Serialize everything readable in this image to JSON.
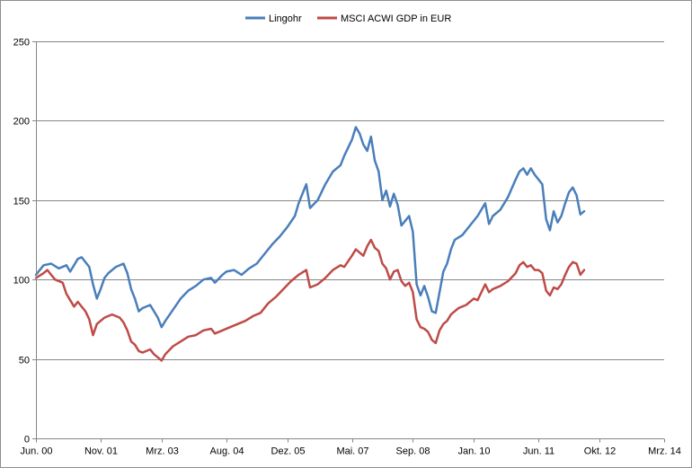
{
  "chart_data": {
    "type": "line",
    "title": "",
    "xlabel": "",
    "ylabel": "",
    "ylim": [
      0,
      250
    ],
    "yticks": [
      0,
      50,
      100,
      150,
      200,
      250
    ],
    "x_tick_labels": [
      "Jun. 00",
      "Nov. 01",
      "Mrz. 03",
      "Aug. 04",
      "Dez. 05",
      "Mai. 07",
      "Sep. 08",
      "Jan. 10",
      "Jun. 11",
      "Okt. 12",
      "Mrz. 14"
    ],
    "x_tick_dates": [
      "2000-06",
      "2001-11",
      "2003-03",
      "2004-08",
      "2005-12",
      "2007-05",
      "2008-09",
      "2010-01",
      "2011-06",
      "2012-10",
      "2014-03"
    ],
    "grid": "horizontal",
    "legend_position": "top",
    "series": [
      {
        "name": "Lingohr",
        "color": "#4a7ebb",
        "points": [
          [
            "2000-06",
            103
          ],
          [
            "2000-08",
            109
          ],
          [
            "2000-10",
            110
          ],
          [
            "2000-12",
            107
          ],
          [
            "2001-02",
            109
          ],
          [
            "2001-03",
            105
          ],
          [
            "2001-05",
            113
          ],
          [
            "2001-06",
            114
          ],
          [
            "2001-08",
            108
          ],
          [
            "2001-09",
            97
          ],
          [
            "2001-10",
            88
          ],
          [
            "2001-11",
            94
          ],
          [
            "2001-12",
            101
          ],
          [
            "2002-01",
            104
          ],
          [
            "2002-03",
            108
          ],
          [
            "2002-05",
            110
          ],
          [
            "2002-06",
            104
          ],
          [
            "2002-07",
            94
          ],
          [
            "2002-08",
            88
          ],
          [
            "2002-09",
            80
          ],
          [
            "2002-10",
            82
          ],
          [
            "2002-12",
            84
          ],
          [
            "2003-02",
            76
          ],
          [
            "2003-03",
            70
          ],
          [
            "2003-04",
            74
          ],
          [
            "2003-06",
            81
          ],
          [
            "2003-08",
            88
          ],
          [
            "2003-10",
            93
          ],
          [
            "2003-12",
            96
          ],
          [
            "2004-02",
            100
          ],
          [
            "2004-04",
            101
          ],
          [
            "2004-05",
            98
          ],
          [
            "2004-07",
            103
          ],
          [
            "2004-08",
            105
          ],
          [
            "2004-10",
            106
          ],
          [
            "2004-12",
            103
          ],
          [
            "2005-02",
            107
          ],
          [
            "2005-04",
            110
          ],
          [
            "2005-06",
            116
          ],
          [
            "2005-08",
            122
          ],
          [
            "2005-10",
            127
          ],
          [
            "2005-12",
            133
          ],
          [
            "2006-02",
            140
          ],
          [
            "2006-03",
            148
          ],
          [
            "2006-05",
            160
          ],
          [
            "2006-06",
            145
          ],
          [
            "2006-08",
            150
          ],
          [
            "2006-10",
            160
          ],
          [
            "2006-12",
            168
          ],
          [
            "2007-02",
            172
          ],
          [
            "2007-03",
            178
          ],
          [
            "2007-05",
            188
          ],
          [
            "2007-06",
            196
          ],
          [
            "2007-07",
            192
          ],
          [
            "2007-08",
            185
          ],
          [
            "2007-09",
            181
          ],
          [
            "2007-10",
            190
          ],
          [
            "2007-11",
            175
          ],
          [
            "2007-12",
            168
          ],
          [
            "2008-01",
            150
          ],
          [
            "2008-02",
            156
          ],
          [
            "2008-03",
            146
          ],
          [
            "2008-04",
            154
          ],
          [
            "2008-05",
            147
          ],
          [
            "2008-06",
            134
          ],
          [
            "2008-07",
            137
          ],
          [
            "2008-08",
            140
          ],
          [
            "2008-09",
            130
          ],
          [
            "2008-10",
            97
          ],
          [
            "2008-11",
            90
          ],
          [
            "2008-12",
            96
          ],
          [
            "2009-01",
            89
          ],
          [
            "2009-02",
            80
          ],
          [
            "2009-03",
            79
          ],
          [
            "2009-04",
            92
          ],
          [
            "2009-05",
            105
          ],
          [
            "2009-06",
            110
          ],
          [
            "2009-07",
            119
          ],
          [
            "2009-08",
            125
          ],
          [
            "2009-10",
            128
          ],
          [
            "2009-12",
            134
          ],
          [
            "2010-02",
            140
          ],
          [
            "2010-04",
            148
          ],
          [
            "2010-05",
            135
          ],
          [
            "2010-06",
            140
          ],
          [
            "2010-08",
            144
          ],
          [
            "2010-10",
            152
          ],
          [
            "2010-12",
            163
          ],
          [
            "2011-01",
            168
          ],
          [
            "2011-02",
            170
          ],
          [
            "2011-03",
            166
          ],
          [
            "2011-04",
            170
          ],
          [
            "2011-05",
            166
          ],
          [
            "2011-06",
            163
          ],
          [
            "2011-07",
            160
          ],
          [
            "2011-08",
            138
          ],
          [
            "2011-09",
            131
          ],
          [
            "2011-10",
            143
          ],
          [
            "2011-11",
            136
          ],
          [
            "2011-12",
            140
          ],
          [
            "2012-01",
            148
          ],
          [
            "2012-02",
            155
          ],
          [
            "2012-03",
            158
          ],
          [
            "2012-04",
            153
          ],
          [
            "2012-05",
            141
          ],
          [
            "2012-06",
            143
          ]
        ]
      },
      {
        "name": "MSCI ACWI GDP in EUR",
        "color": "#be4b48",
        "points": [
          [
            "2000-06",
            101
          ],
          [
            "2000-08",
            104
          ],
          [
            "2000-09",
            106
          ],
          [
            "2000-11",
            100
          ],
          [
            "2001-01",
            98
          ],
          [
            "2001-02",
            91
          ],
          [
            "2001-04",
            83
          ],
          [
            "2001-05",
            86
          ],
          [
            "2001-07",
            80
          ],
          [
            "2001-08",
            75
          ],
          [
            "2001-09",
            65
          ],
          [
            "2001-10",
            72
          ],
          [
            "2001-12",
            76
          ],
          [
            "2002-02",
            78
          ],
          [
            "2002-04",
            76
          ],
          [
            "2002-05",
            73
          ],
          [
            "2002-06",
            68
          ],
          [
            "2002-07",
            61
          ],
          [
            "2002-08",
            59
          ],
          [
            "2002-09",
            55
          ],
          [
            "2002-10",
            54
          ],
          [
            "2002-12",
            56
          ],
          [
            "2003-01",
            53
          ],
          [
            "2003-02",
            51
          ],
          [
            "2003-03",
            49
          ],
          [
            "2003-04",
            53
          ],
          [
            "2003-06",
            58
          ],
          [
            "2003-08",
            61
          ],
          [
            "2003-10",
            64
          ],
          [
            "2003-12",
            65
          ],
          [
            "2004-02",
            68
          ],
          [
            "2004-04",
            69
          ],
          [
            "2004-05",
            66
          ],
          [
            "2004-07",
            68
          ],
          [
            "2004-09",
            70
          ],
          [
            "2004-11",
            72
          ],
          [
            "2005-01",
            74
          ],
          [
            "2005-03",
            77
          ],
          [
            "2005-05",
            79
          ],
          [
            "2005-07",
            85
          ],
          [
            "2005-09",
            89
          ],
          [
            "2005-11",
            94
          ],
          [
            "2006-01",
            99
          ],
          [
            "2006-03",
            103
          ],
          [
            "2006-05",
            106
          ],
          [
            "2006-06",
            95
          ],
          [
            "2006-08",
            97
          ],
          [
            "2006-10",
            101
          ],
          [
            "2006-12",
            106
          ],
          [
            "2007-02",
            109
          ],
          [
            "2007-03",
            108
          ],
          [
            "2007-05",
            115
          ],
          [
            "2007-06",
            119
          ],
          [
            "2007-08",
            115
          ],
          [
            "2007-09",
            121
          ],
          [
            "2007-10",
            125
          ],
          [
            "2007-11",
            120
          ],
          [
            "2007-12",
            118
          ],
          [
            "2008-01",
            110
          ],
          [
            "2008-02",
            107
          ],
          [
            "2008-03",
            100
          ],
          [
            "2008-04",
            105
          ],
          [
            "2008-05",
            106
          ],
          [
            "2008-06",
            99
          ],
          [
            "2008-07",
            96
          ],
          [
            "2008-08",
            98
          ],
          [
            "2008-09",
            92
          ],
          [
            "2008-10",
            75
          ],
          [
            "2008-11",
            70
          ],
          [
            "2008-12",
            69
          ],
          [
            "2009-01",
            67
          ],
          [
            "2009-02",
            62
          ],
          [
            "2009-03",
            60
          ],
          [
            "2009-04",
            68
          ],
          [
            "2009-05",
            72
          ],
          [
            "2009-06",
            74
          ],
          [
            "2009-07",
            78
          ],
          [
            "2009-09",
            82
          ],
          [
            "2009-11",
            84
          ],
          [
            "2010-01",
            88
          ],
          [
            "2010-02",
            87
          ],
          [
            "2010-04",
            97
          ],
          [
            "2010-05",
            92
          ],
          [
            "2010-06",
            94
          ],
          [
            "2010-08",
            96
          ],
          [
            "2010-10",
            99
          ],
          [
            "2010-12",
            104
          ],
          [
            "2011-01",
            109
          ],
          [
            "2011-02",
            111
          ],
          [
            "2011-03",
            108
          ],
          [
            "2011-04",
            109
          ],
          [
            "2011-05",
            106
          ],
          [
            "2011-06",
            106
          ],
          [
            "2011-07",
            104
          ],
          [
            "2011-08",
            93
          ],
          [
            "2011-09",
            90
          ],
          [
            "2011-10",
            95
          ],
          [
            "2011-11",
            94
          ],
          [
            "2011-12",
            97
          ],
          [
            "2012-01",
            103
          ],
          [
            "2012-02",
            108
          ],
          [
            "2012-03",
            111
          ],
          [
            "2012-04",
            110
          ],
          [
            "2012-05",
            103
          ],
          [
            "2012-06",
            106
          ]
        ]
      }
    ]
  }
}
